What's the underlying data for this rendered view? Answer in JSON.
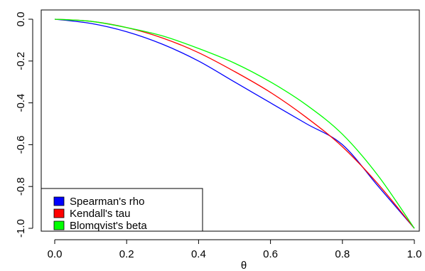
{
  "chart_data": {
    "type": "line",
    "title": "",
    "xlabel": "θ",
    "ylabel": "",
    "xlim": [
      0,
      1
    ],
    "ylim": [
      -1,
      0
    ],
    "x_ticks": [
      0.0,
      0.2,
      0.4,
      0.6,
      0.8,
      1.0
    ],
    "x_tick_labels": [
      "0.0",
      "0.2",
      "0.4",
      "0.6",
      "0.8",
      "1.0"
    ],
    "y_ticks": [
      0.0,
      -0.2,
      -0.4,
      -0.6,
      -0.8,
      -1.0
    ],
    "y_tick_labels": [
      "0.0",
      "-0.2",
      "-0.4",
      "-0.6",
      "-0.8",
      "-1.0"
    ],
    "grid": false,
    "legend_position": "bottom-left",
    "x": [
      0.0,
      0.1,
      0.2,
      0.3,
      0.4,
      0.5,
      0.6,
      0.7,
      0.8,
      0.9,
      1.0
    ],
    "series": [
      {
        "name": "Spearman's rho",
        "color": "#0000ff",
        "values": [
          0.0,
          -0.02,
          -0.06,
          -0.12,
          -0.2,
          -0.3,
          -0.4,
          -0.5,
          -0.6,
          -0.8,
          -1.0
        ]
      },
      {
        "name": "Kendall's tau",
        "color": "#ff0000",
        "values": [
          0.0,
          -0.01,
          -0.04,
          -0.09,
          -0.16,
          -0.25,
          -0.35,
          -0.47,
          -0.61,
          -0.79,
          -1.0
        ]
      },
      {
        "name": "Blomqvist's beta",
        "color": "#00ff00",
        "values": [
          0.0,
          -0.01,
          -0.04,
          -0.08,
          -0.14,
          -0.21,
          -0.3,
          -0.41,
          -0.55,
          -0.75,
          -1.0
        ]
      }
    ]
  }
}
